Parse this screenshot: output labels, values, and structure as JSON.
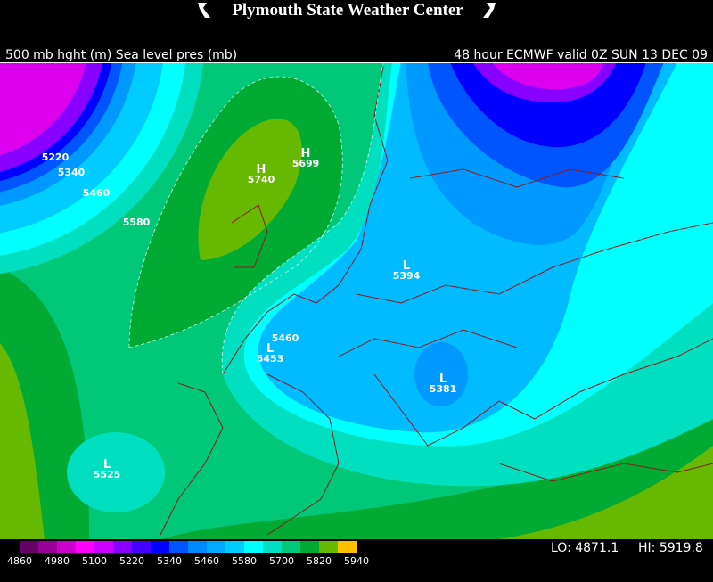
{
  "header": {
    "title": "Plymouth State Weather Center"
  },
  "subtitle_left": "500 mb hght (m) Sea level pres (mb)",
  "subtitle_right": "48 hour ECMWF valid 0Z SUN 13 DEC 09",
  "contour_labels": [
    "5220",
    "5340",
    "5460",
    "5580",
    "5460"
  ],
  "centers": [
    {
      "type": "H",
      "value": "5740"
    },
    {
      "type": "H",
      "value": "5699"
    },
    {
      "type": "L",
      "value": "5394"
    },
    {
      "type": "L",
      "value": "5453"
    },
    {
      "type": "L",
      "value": "5381"
    },
    {
      "type": "L",
      "value": "5525"
    }
  ],
  "legend": {
    "labels": [
      "4860",
      "4980",
      "5100",
      "5220",
      "5340",
      "5460",
      "5580",
      "5700",
      "5820",
      "5940"
    ],
    "colors": [
      "#660066",
      "#990099",
      "#cc00cc",
      "#ff00ff",
      "#cc00ff",
      "#8800ff",
      "#4400ff",
      "#0000ff",
      "#0055ff",
      "#0088ff",
      "#00aaff",
      "#00ccff",
      "#00ffff",
      "#00e0c0",
      "#00c878",
      "#00aa33",
      "#66b800",
      "#ffc000"
    ]
  },
  "lo": "LO: 4871.1",
  "hi": "HI: 5919.8"
}
